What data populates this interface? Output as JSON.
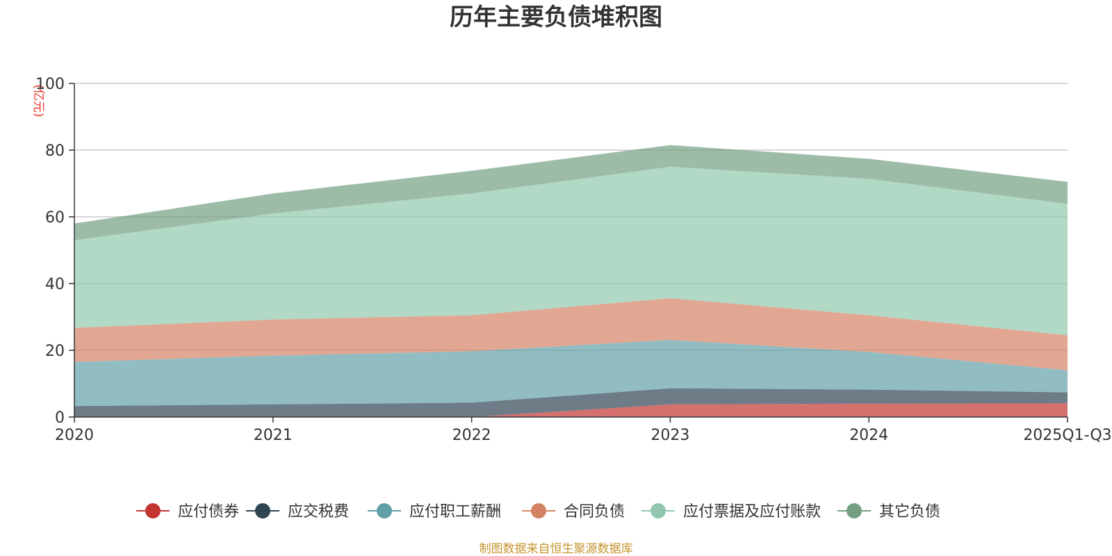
{
  "chart_data": {
    "type": "area",
    "stacked": true,
    "title": "历年主要负债堆积图",
    "ylabel": "(亿元)",
    "xlabel": "",
    "ylim": [
      0,
      100
    ],
    "yticks": [
      0,
      20,
      40,
      60,
      80,
      100
    ],
    "categories": [
      "2020",
      "2021",
      "2022",
      "2023",
      "2024",
      "2025Q1-Q3"
    ],
    "series": [
      {
        "name": "应付债券",
        "color": "#c23531",
        "values": [
          0,
          0,
          0,
          3.8,
          4.0,
          4.1
        ]
      },
      {
        "name": "应交税费",
        "color": "#2f4554",
        "values": [
          3.3,
          3.8,
          4.3,
          4.8,
          4.2,
          3.3
        ]
      },
      {
        "name": "应付职工薪酬",
        "color": "#61a0a8",
        "values": [
          13.2,
          14.6,
          15.4,
          14.5,
          11.3,
          6.6
        ]
      },
      {
        "name": "合同负债",
        "color": "#d48265",
        "values": [
          10.2,
          10.8,
          10.8,
          12.5,
          11.0,
          10.5
        ]
      },
      {
        "name": "应付票据及应付账款",
        "color": "#91c7ae",
        "values": [
          26.3,
          31.8,
          36.5,
          39.4,
          40.9,
          39.4
        ]
      },
      {
        "name": "其它负债",
        "color": "#749f83",
        "values": [
          5.0,
          6.0,
          6.8,
          6.5,
          6.0,
          6.6
        ]
      }
    ],
    "legend_position": "bottom",
    "grid": true
  },
  "source_note": "制图数据来自恒生聚源数据库"
}
